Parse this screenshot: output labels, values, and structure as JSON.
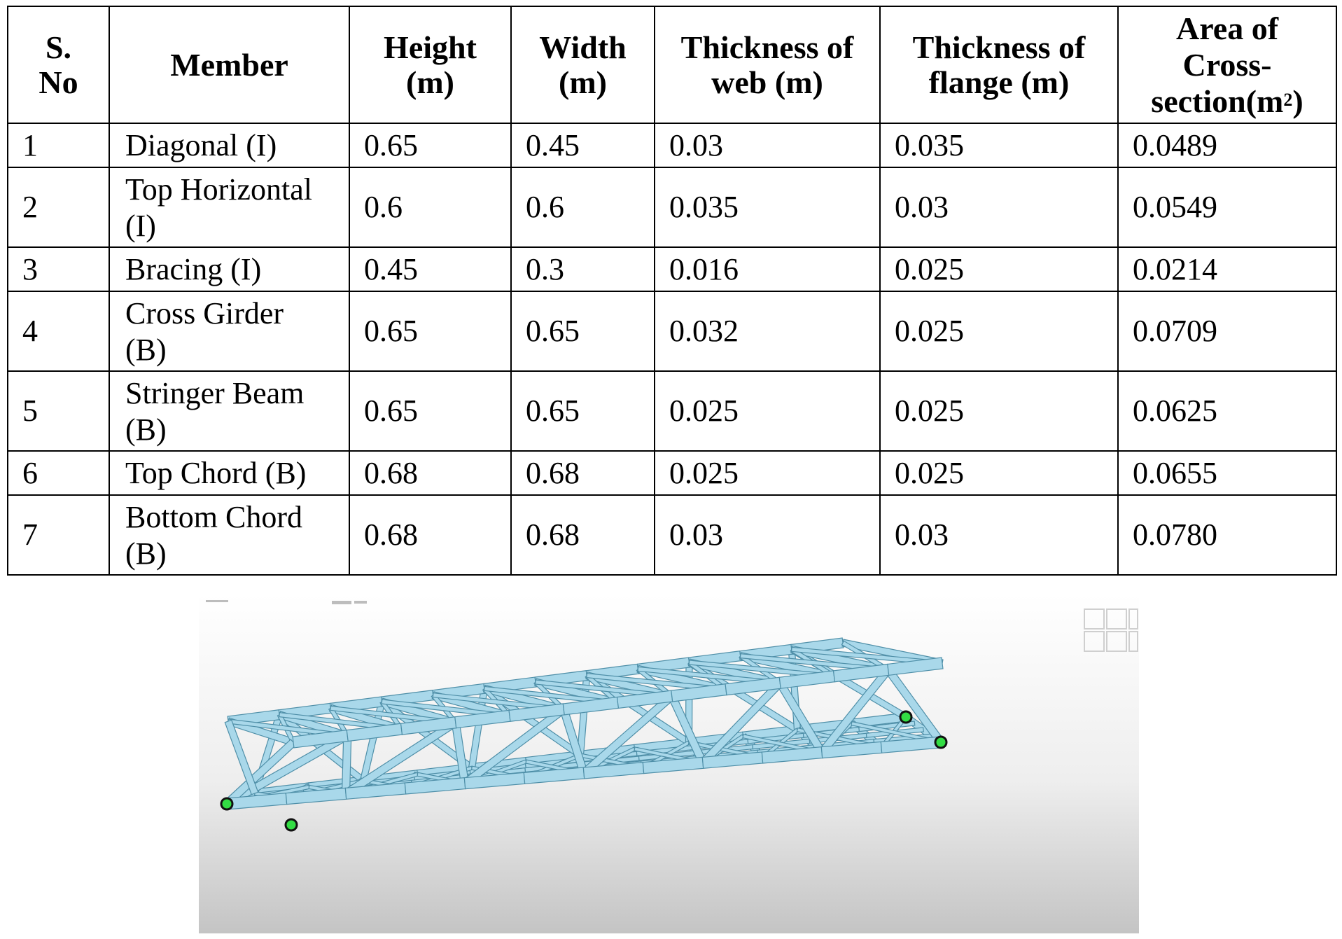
{
  "table": {
    "headers": [
      {
        "line1": "S.",
        "line2": "No",
        "line3": ""
      },
      {
        "line1": "Member",
        "line2": "",
        "line3": ""
      },
      {
        "line1": "Height",
        "line2": "(m)",
        "line3": ""
      },
      {
        "line1": "Width",
        "line2": "(m)",
        "line3": ""
      },
      {
        "line1": "Thickness of",
        "line2": "web (m)",
        "line3": ""
      },
      {
        "line1": "Thickness of",
        "line2": "flange (m)",
        "line3": ""
      },
      {
        "line1": "Area of",
        "line2": "Cross-",
        "line3": "section(m",
        "sup": "2",
        "tail": ")"
      }
    ],
    "rows": [
      {
        "sno": "1",
        "member1": "Diagonal (I)",
        "member2": "",
        "height": "0.65",
        "width": "0.45",
        "web": "0.03",
        "flange": "0.035",
        "area": "0.0489"
      },
      {
        "sno": "2",
        "member1": "Top Horizontal",
        "member2": "(I)",
        "height": "0.6",
        "width": "0.6",
        "web": "0.035",
        "flange": "0.03",
        "area": "0.0549"
      },
      {
        "sno": "3",
        "member1": "Bracing (I)",
        "member2": "",
        "height": "0.45",
        "width": "0.3",
        "web": "0.016",
        "flange": "0.025",
        "area": "0.0214"
      },
      {
        "sno": "4",
        "member1": "Cross Girder",
        "member2": "(B)",
        "height": "0.65",
        "width": "0.65",
        "web": "0.032",
        "flange": "0.025",
        "area": "0.0709"
      },
      {
        "sno": "5",
        "member1": "Stringer Beam",
        "member2": "(B)",
        "height": "0.65",
        "width": "0.65",
        "web": "0.025",
        "flange": "0.025",
        "area": "0.0625"
      },
      {
        "sno": "6",
        "member1": "Top Chord (B)",
        "member2": "",
        "height": "0.68",
        "width": "0.68",
        "web": "0.025",
        "flange": "0.025",
        "area": "0.0655"
      },
      {
        "sno": "7",
        "member1": "Bottom Chord",
        "member2": "(B)",
        "height": "0.68",
        "width": "0.68",
        "web": "0.03",
        "flange": "0.03",
        "area": "0.0780"
      }
    ]
  },
  "figure": {
    "content": "truss-bridge-3d-model",
    "colors": {
      "member_fill": "#a9d8ea",
      "member_edge": "#4f8fa8",
      "support_node": "#33dd44",
      "background_top": "#ffffff",
      "background_bottom": "#c4c4c4"
    }
  }
}
